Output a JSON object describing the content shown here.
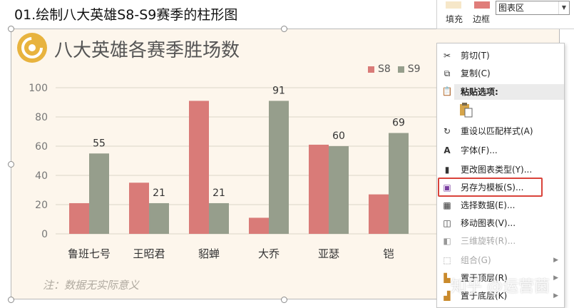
{
  "page_heading": "01.绘制八大英雄S8-S9赛季的柱形图",
  "chart_data": {
    "type": "bar",
    "title": "八大英雄各赛季胜场数",
    "categories": [
      "鲁班七号",
      "王昭君",
      "貂蝉",
      "大乔",
      "亚瑟",
      "铠"
    ],
    "series": [
      {
        "name": "S8",
        "values": [
          21,
          35,
          91,
          11,
          61,
          27
        ],
        "color": "#d97b78"
      },
      {
        "name": "S9",
        "values": [
          55,
          21,
          21,
          91,
          60,
          69
        ],
        "color": "#969e8c"
      }
    ],
    "data_labels_visible": {
      "S9": [
        55,
        21,
        21,
        91,
        60,
        69
      ]
    },
    "yticks": [
      "0",
      "20",
      "40",
      "60",
      "80",
      "100"
    ],
    "ylim": [
      0,
      100
    ],
    "grid": true,
    "legend_position": "top-right",
    "note": "注：数据无实际意义"
  },
  "ribbon": {
    "fill_label": "填充",
    "border_label": "边框",
    "element_select_value": "图表区"
  },
  "context_menu": {
    "items": [
      {
        "label": "剪切(T)",
        "icon": "scissors-icon",
        "enabled": true
      },
      {
        "label": "复制(C)",
        "icon": "copy-icon",
        "enabled": true
      },
      {
        "label": "粘贴选项:",
        "icon": "paste-icon",
        "enabled": true
      },
      {
        "label": "重设以匹配样式(A)",
        "icon": "reset-style-icon",
        "enabled": true
      },
      {
        "label": "字体(F)...",
        "icon": "font-icon",
        "enabled": true
      },
      {
        "label": "更改图表类型(Y)...",
        "icon": "chart-type-icon",
        "enabled": true
      },
      {
        "label": "另存为模板(S)...",
        "icon": "save-template-icon",
        "enabled": true
      },
      {
        "label": "选择数据(E)...",
        "icon": "select-data-icon",
        "enabled": true
      },
      {
        "label": "移动图表(V)...",
        "icon": "move-chart-icon",
        "enabled": true
      },
      {
        "label": "三维旋转(R)...",
        "icon": "rotate-3d-icon",
        "enabled": false
      },
      {
        "label": "组合(G)",
        "icon": "group-icon",
        "enabled": false
      },
      {
        "label": "置于顶层(R)",
        "icon": "bring-front-icon",
        "enabled": true
      },
      {
        "label": "置于底层(K)",
        "icon": "send-back-icon",
        "enabled": true
      }
    ]
  },
  "watermark": "知乎 @运营菌"
}
